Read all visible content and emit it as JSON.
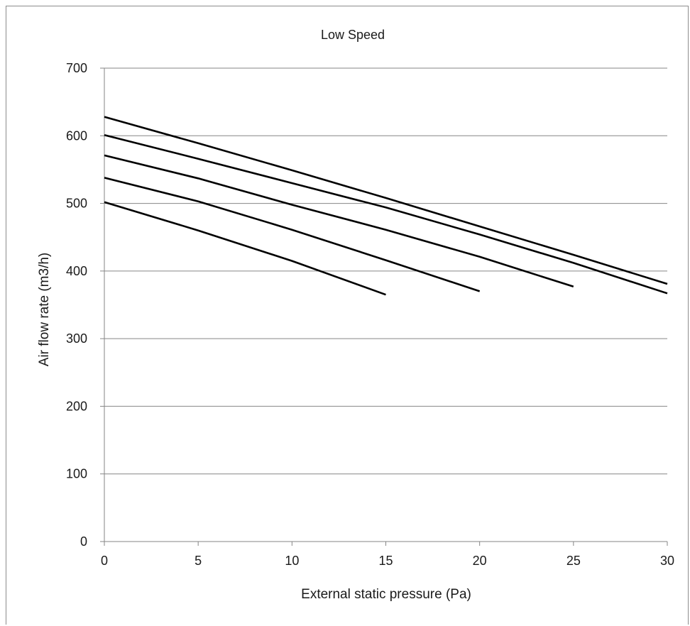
{
  "chart_data": {
    "type": "line",
    "title": "Low Speed",
    "xlabel": "External static pressure (Pa)",
    "ylabel": "Air flow rate (m3/h)",
    "xlim": [
      0,
      30
    ],
    "ylim": [
      0,
      700
    ],
    "x_ticks": [
      0,
      5,
      10,
      15,
      20,
      25,
      30
    ],
    "y_ticks": [
      0,
      100,
      200,
      300,
      400,
      500,
      600,
      700
    ],
    "grid": "horizontal",
    "legend": "none",
    "line_color": "#000000",
    "grid_color": "#868686",
    "series": [
      {
        "x": [
          0,
          5,
          10,
          15
        ],
        "y": [
          502,
          460,
          415,
          365
        ]
      },
      {
        "x": [
          0,
          5,
          10,
          15,
          20
        ],
        "y": [
          538,
          503,
          461,
          416,
          370
        ]
      },
      {
        "x": [
          0,
          5,
          10,
          15,
          20,
          25
        ],
        "y": [
          571,
          537,
          498,
          461,
          421,
          377
        ]
      },
      {
        "x": [
          0,
          5,
          10,
          15,
          20,
          25,
          30
        ],
        "y": [
          601,
          566,
          530,
          494,
          454,
          412,
          367
        ]
      },
      {
        "x": [
          0,
          5,
          10,
          15,
          20,
          25,
          30
        ],
        "y": [
          628,
          589,
          549,
          508,
          466,
          424,
          381
        ]
      }
    ]
  }
}
